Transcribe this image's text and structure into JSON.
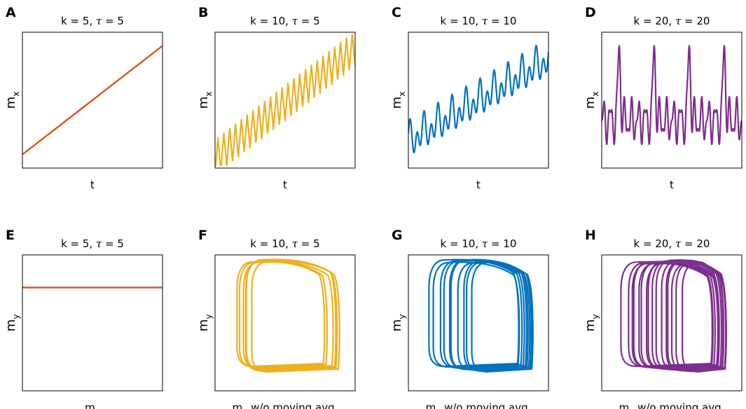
{
  "chart_data": [
    {
      "letter": "A",
      "type": "line",
      "title_prefix": "k = 5, ",
      "tau_symbol": "τ",
      "title_suffix": " = 5",
      "xlabel": "t",
      "ylabel": "m",
      "ylabel_sub": "x",
      "xlabel_sub": "",
      "xlabel_rest": "",
      "series": [
        {
          "kind": "linear",
          "color": "#D95319",
          "start": 0.1,
          "end": 0.9
        }
      ]
    },
    {
      "letter": "B",
      "type": "line",
      "title_prefix": "k = 10, ",
      "tau_symbol": "τ",
      "title_suffix": " = 5",
      "xlabel": "t",
      "ylabel": "m",
      "ylabel_sub": "x",
      "xlabel_sub": "",
      "xlabel_rest": "",
      "series": [
        {
          "kind": "sawtooth",
          "color": "#EDB120",
          "start": 0.08,
          "end": 0.88,
          "cycles": 24,
          "amp": 0.13,
          "sharp": 1
        }
      ]
    },
    {
      "letter": "C",
      "type": "line",
      "title_prefix": "k = 10, ",
      "tau_symbol": "τ",
      "title_suffix": " = 10",
      "xlabel": "t",
      "ylabel": "m",
      "ylabel_sub": "x",
      "xlabel_sub": "",
      "xlabel_rest": "",
      "series": [
        {
          "kind": "beat",
          "color": "#0072BD",
          "start": 0.2,
          "end": 0.8,
          "cycles": 20,
          "amp": 0.13,
          "sharp": 1
        }
      ]
    },
    {
      "letter": "D",
      "type": "line",
      "title_prefix": "k = 20, ",
      "tau_symbol": "τ",
      "title_suffix": " = 20",
      "xlabel": "t",
      "ylabel": "m",
      "ylabel_sub": "x",
      "xlabel_sub": "",
      "xlabel_rest": "",
      "series": [
        {
          "kind": "spiky",
          "color": "#7E2F8E",
          "start": 0.2,
          "end": 0.2,
          "cycles": 4,
          "amp": 0.55,
          "sharp": 1
        }
      ]
    },
    {
      "letter": "E",
      "type": "line",
      "title_prefix": "k = 5, ",
      "tau_symbol": "τ",
      "title_suffix": " = 5",
      "xlabel": "m",
      "ylabel": "m",
      "ylabel_sub": "y",
      "xlabel_sub": "x",
      "xlabel_rest": "",
      "series": [
        {
          "kind": "flat",
          "color": "#D95319",
          "level": 0.76
        }
      ]
    },
    {
      "letter": "F",
      "type": "line",
      "title_prefix": "k = 10, ",
      "tau_symbol": "τ",
      "title_suffix": " = 5",
      "xlabel": "m",
      "ylabel": "m",
      "ylabel_sub": "y",
      "xlabel_sub": "x",
      "xlabel_rest": " w/o moving avg.",
      "series": [
        {
          "kind": "loops",
          "color": "#EDB120",
          "count": 6,
          "spread": 0.1
        }
      ]
    },
    {
      "letter": "G",
      "type": "line",
      "title_prefix": "k = 10, ",
      "tau_symbol": "τ",
      "title_suffix": " = 10",
      "xlabel": "m",
      "ylabel": "m",
      "ylabel_sub": "y",
      "xlabel_sub": "x",
      "xlabel_rest": " w/o moving avg.",
      "series": [
        {
          "kind": "loops",
          "color": "#0072BD",
          "count": 10,
          "spread": 0.3
        }
      ]
    },
    {
      "letter": "H",
      "type": "line",
      "title_prefix": "k = 20, ",
      "tau_symbol": "τ",
      "title_suffix": " = 20",
      "xlabel": "m",
      "ylabel": "m",
      "ylabel_sub": "y",
      "xlabel_sub": "x",
      "xlabel_rest": " w/o moving avg.",
      "series": [
        {
          "kind": "loops",
          "color": "#7E2F8E",
          "count": 16,
          "spread": 0.42
        }
      ]
    }
  ]
}
